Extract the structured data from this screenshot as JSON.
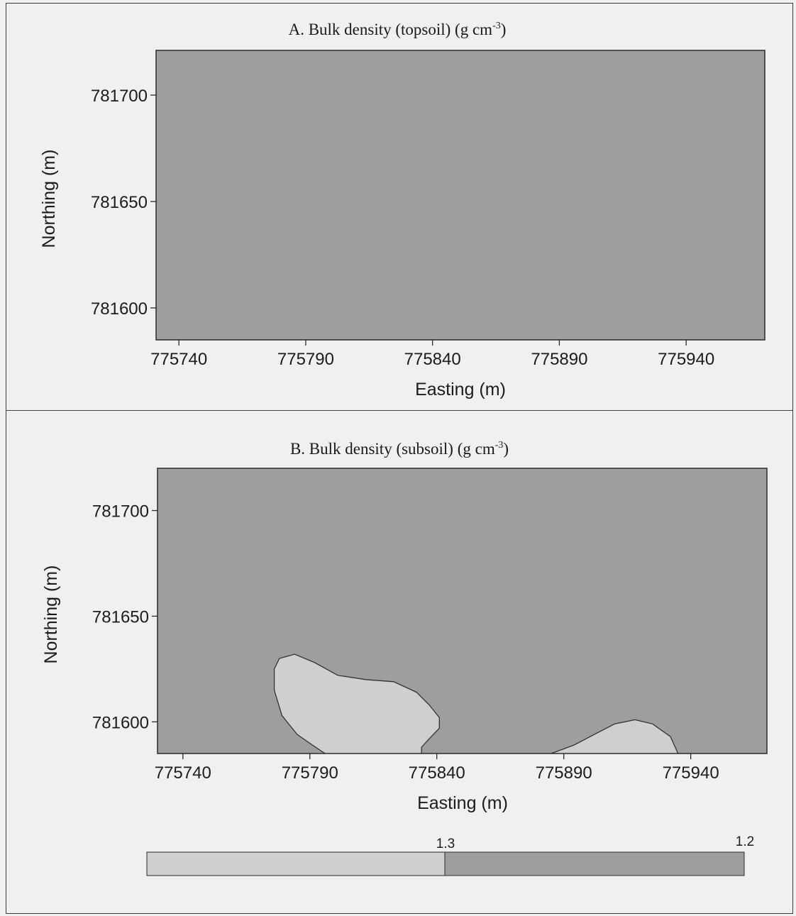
{
  "colors": {
    "high_class": "#9e9e9e",
    "low_class": "#cfcfcf",
    "contour_line": "#333333",
    "frame": "#2a2a2a",
    "page": "#f0f0f0"
  },
  "chart_data": [
    {
      "type": "heatmap",
      "panel": "A",
      "title": "A. Bulk density (topsoil) (g cm",
      "title_superscript": "-3",
      "title_suffix": ")",
      "xlabel": "Easting (m)",
      "ylabel": "Northing (m)",
      "x_ticks": [
        "775740",
        "775790",
        "775840",
        "775890",
        "775940"
      ],
      "y_ticks": [
        "781700",
        "781650",
        "781600"
      ],
      "x_tick_values": [
        775740,
        775790,
        775840,
        775890,
        775940
      ],
      "y_tick_values": [
        781700,
        781650,
        781600
      ],
      "xlim": [
        775731,
        775971
      ],
      "ylim": [
        781585,
        781721
      ],
      "background_class": "1.2",
      "regions": []
    },
    {
      "type": "heatmap",
      "panel": "B",
      "title": "B. Bulk density (subsoil) (g cm",
      "title_superscript": "-3",
      "title_suffix": ")",
      "xlabel": "Easting (m)",
      "ylabel": "Northing (m)",
      "x_ticks": [
        "775740",
        "775790",
        "775840",
        "775890",
        "775940"
      ],
      "y_ticks": [
        "781700",
        "781650",
        "781600"
      ],
      "x_tick_values": [
        775740,
        775790,
        775840,
        775890,
        775940
      ],
      "y_tick_values": [
        781700,
        781650,
        781600
      ],
      "xlim": [
        775730,
        775970
      ],
      "ylim": [
        781585,
        781720
      ],
      "background_class": "1.2",
      "regions": [
        {
          "class": "1.3",
          "outline": [
            [
              775796,
              781585
            ],
            [
              775791,
              781589
            ],
            [
              775785,
              781594
            ],
            [
              775779,
              781603
            ],
            [
              775776,
              781615
            ],
            [
              775776,
              781625
            ],
            [
              775778,
              781630
            ],
            [
              775784,
              781632
            ],
            [
              775792,
              781628
            ],
            [
              775801,
              781622
            ],
            [
              775812,
              781620
            ],
            [
              775823,
              781619
            ],
            [
              775832,
              781614
            ],
            [
              775837,
              781608
            ],
            [
              775841,
              781602
            ],
            [
              775841,
              781597
            ],
            [
              775837,
              781592
            ],
            [
              775834,
              781588
            ],
            [
              775834,
              781585
            ]
          ]
        },
        {
          "class": "1.3",
          "outline": [
            [
              775885,
              781585
            ],
            [
              775894,
              781589
            ],
            [
              775902,
              781594
            ],
            [
              775910,
              781599
            ],
            [
              775918,
              781601
            ],
            [
              775925,
              781599
            ],
            [
              775932,
              781593
            ],
            [
              775935,
              781585
            ]
          ]
        }
      ]
    }
  ],
  "legend": {
    "classes": [
      "1.3",
      "1.2"
    ],
    "labels": [
      "1.3",
      "1.2"
    ]
  }
}
